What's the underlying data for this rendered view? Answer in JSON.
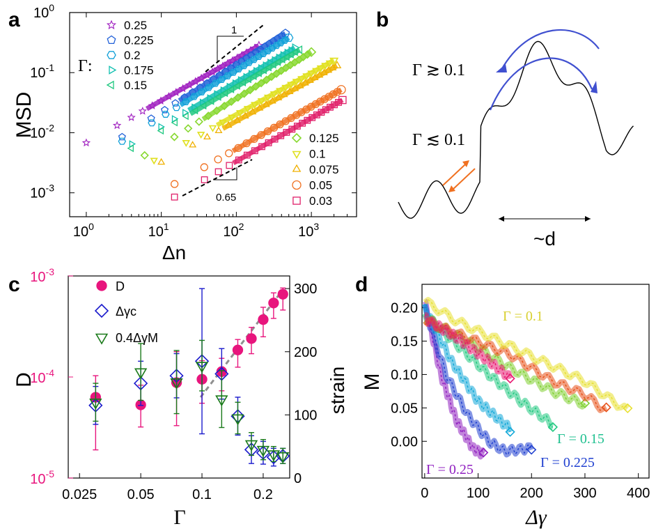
{
  "chart_data": [
    {
      "panel": "a",
      "type": "scatter",
      "xlabel": "Δn",
      "ylabel": "MSD",
      "xscale": "log",
      "yscale": "log",
      "xlim": [
        0.6,
        4000
      ],
      "ylim": [
        0.0004,
        1
      ],
      "x_ticks": [
        "10^0",
        "10^1",
        "10^2",
        "10^3"
      ],
      "y_ticks": [
        "10^-3",
        "10^-2",
        "10^-1",
        "10^0"
      ],
      "legend_symbol": "Γ:",
      "slope_labels": {
        "upper": "1",
        "lower": "0.65"
      },
      "series": [
        {
          "name": "0.25",
          "color": "#a020c0",
          "marker": "star",
          "x0": 1,
          "y0": 0.0068,
          "x1": 200,
          "y1": 0.28
        },
        {
          "name": "0.225",
          "color": "#2060d8",
          "marker": "pentagon",
          "x0": 3,
          "y0": 0.0085,
          "x1": 450,
          "y1": 0.45
        },
        {
          "name": "0.2",
          "color": "#10a0d8",
          "marker": "hexagon",
          "x0": 3,
          "y0": 0.0072,
          "x1": 500,
          "y1": 0.38
        },
        {
          "name": "0.175",
          "color": "#10c0b0",
          "marker": "tri-right",
          "x0": 4,
          "y0": 0.0065,
          "x1": 600,
          "y1": 0.26
        },
        {
          "name": "0.15",
          "color": "#20c880",
          "marker": "tri-left",
          "x0": 4,
          "y0": 0.0055,
          "x1": 700,
          "y1": 0.24
        },
        {
          "name": "0.125",
          "color": "#88d830",
          "marker": "diamond",
          "x0": 6,
          "y0": 0.0042,
          "x1": 1000,
          "y1": 0.22
        },
        {
          "name": "0.1",
          "color": "#e0e020",
          "marker": "tri-down",
          "x0": 8,
          "y0": 0.0035,
          "x1": 2000,
          "y1": 0.16
        },
        {
          "name": "0.075",
          "color": "#f0b000",
          "marker": "tri-up",
          "x0": 10,
          "y0": 0.0032,
          "x1": 2200,
          "y1": 0.13
        },
        {
          "name": "0.05",
          "color": "#f07020",
          "marker": "circle",
          "x0": 15,
          "y0": 0.0014,
          "x1": 2500,
          "y1": 0.052
        },
        {
          "name": "0.03",
          "color": "#e0206a",
          "marker": "square",
          "x0": 15,
          "y0": 0.00085,
          "x1": 2600,
          "y1": 0.035
        }
      ]
    },
    {
      "panel": "b",
      "type": "diagram",
      "labels": {
        "high": "Γ ≳ 0.1",
        "low": "Γ ≲ 0.1",
        "width": "~d"
      }
    },
    {
      "panel": "c",
      "type": "scatter",
      "xlabel": "Γ",
      "ylabel_left": "D",
      "ylabel_right": "strain",
      "xscale": "log",
      "xlim": [
        0.022,
        0.27
      ],
      "ylim_left": [
        1e-05,
        0.001
      ],
      "ylim_right": [
        0,
        320
      ],
      "x_ticks": [
        "0.025",
        "0.05",
        "0.1",
        "0.2"
      ],
      "y_ticks_left": [
        "10^-5",
        "10^-4",
        "10^-3"
      ],
      "y_ticks_right": [
        "0",
        "100",
        "200",
        "300"
      ],
      "series": [
        {
          "name": "D",
          "axis": "left",
          "color": "#e8157d",
          "marker": "filled-circle",
          "x": [
            0.03,
            0.05,
            0.075,
            0.1,
            0.125,
            0.15,
            0.175,
            0.2,
            0.225,
            0.25
          ],
          "y": [
            6.3e-05,
            5.3e-05,
            8.8e-05,
            9.5e-05,
            0.000113,
            0.000185,
            0.00024,
            0.00037,
            0.00054,
            0.00066
          ],
          "err_lo": [
            4.4e-05,
            2.1e-05,
            5.5e-05,
            4e-05,
            4e-05,
            6e-05,
            7e-05,
            0.00012,
            0.00016,
            0.0002
          ],
          "err_hi": [
            4e-05,
            3e-05,
            9e-05,
            5e-05,
            4e-05,
            5e-05,
            7e-05,
            0.00012,
            0.00014,
            0.0001
          ]
        },
        {
          "name": "Δγc",
          "axis": "right",
          "color": "#1a1acc",
          "marker": "diamond",
          "x": [
            0.03,
            0.05,
            0.075,
            0.1,
            0.125,
            0.15,
            0.175,
            0.2,
            0.225,
            0.25
          ],
          "y": [
            115,
            150,
            162,
            185,
            165,
            98,
            45,
            40,
            33,
            35
          ],
          "err": [
            30,
            35,
            35,
            115,
            40,
            30,
            22,
            18,
            14,
            12
          ]
        },
        {
          "name": "0.4ΔγM",
          "axis": "right",
          "color": "#1a7a1a",
          "marker": "tri-down",
          "x": [
            0.03,
            0.05,
            0.075,
            0.1,
            0.125,
            0.15,
            0.175,
            0.2,
            0.225,
            0.25
          ],
          "y": [
            120,
            168,
            152,
            178,
            125,
            95,
            54,
            45,
            38,
            35
          ],
          "err": [
            30,
            45,
            50,
            40,
            45,
            25,
            18,
            16,
            12,
            12
          ]
        }
      ],
      "fit_line": {
        "style": "dashed",
        "color": "#909090"
      }
    },
    {
      "panel": "d",
      "type": "line",
      "xlabel": "Δγ",
      "ylabel": "M",
      "xlim": [
        -5,
        420
      ],
      "ylim": [
        -0.055,
        0.235
      ],
      "x_ticks": [
        "0",
        "100",
        "200",
        "300",
        "400"
      ],
      "y_ticks": [
        "0.00",
        "0.05",
        "0.10",
        "0.15",
        "0.20"
      ],
      "annotations": [
        "Γ = 0.1",
        "Γ = 0.15",
        "Γ = 0.225",
        "Γ = 0.25"
      ],
      "series": [
        {
          "name": "0.25",
          "color": "#9020c0",
          "x": [
            0,
            30,
            60,
            90,
            110
          ],
          "y": [
            0.21,
            0.1,
            0.03,
            -0.01,
            -0.02
          ]
        },
        {
          "name": "0.225",
          "color": "#2040d0",
          "x": [
            0,
            40,
            80,
            120,
            150,
            200
          ],
          "y": [
            0.2,
            0.1,
            0.04,
            0.0,
            -0.015,
            -0.01
          ]
        },
        {
          "name": "0.2",
          "color": "#10a8d8",
          "x": [
            0,
            50,
            100,
            150,
            160
          ],
          "y": [
            0.2,
            0.12,
            0.06,
            0.025,
            0.02
          ]
        },
        {
          "name": "0.15",
          "color": "#20c880",
          "x": [
            0,
            60,
            120,
            180,
            240
          ],
          "y": [
            0.19,
            0.145,
            0.1,
            0.06,
            0.025
          ]
        },
        {
          "name": "0.125",
          "color": "#80d030",
          "x": [
            0,
            80,
            160,
            240,
            300
          ],
          "y": [
            0.185,
            0.15,
            0.11,
            0.075,
            0.055
          ]
        },
        {
          "name": "0.075",
          "color": "#e85018",
          "x": [
            0,
            80,
            160,
            240,
            300,
            340
          ],
          "y": [
            0.18,
            0.155,
            0.13,
            0.09,
            0.07,
            0.045
          ]
        },
        {
          "name": "0.1",
          "color": "#e8e030",
          "x": [
            0,
            60,
            140,
            220,
            300,
            380
          ],
          "y": [
            0.21,
            0.18,
            0.15,
            0.12,
            0.09,
            0.045
          ]
        },
        {
          "name": "0.05",
          "color": "#e81870",
          "x": [
            0,
            60,
            120,
            160
          ],
          "y": [
            0.185,
            0.155,
            0.12,
            0.095
          ]
        }
      ]
    }
  ],
  "panels": {
    "a": "a",
    "b": "b",
    "c": "c",
    "d": "d"
  }
}
